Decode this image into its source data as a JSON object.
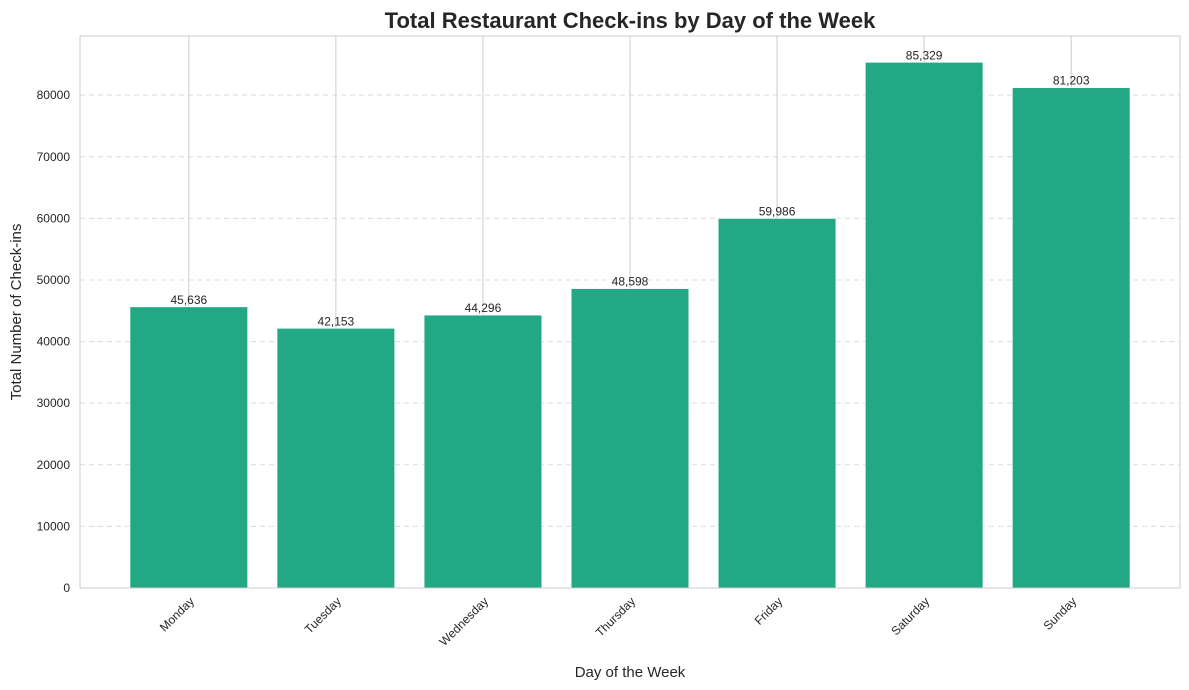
{
  "chart_data": {
    "type": "bar",
    "title": "Total Restaurant Check-ins by Day of the Week",
    "xlabel": "Day of the Week",
    "ylabel": "Total Number of Check-ins",
    "categories": [
      "Monday",
      "Tuesday",
      "Wednesday",
      "Thursday",
      "Friday",
      "Saturday",
      "Sunday"
    ],
    "values": [
      45636,
      42153,
      44296,
      48598,
      59986,
      85329,
      81203
    ],
    "data_labels": [
      "45,636",
      "42,153",
      "44,296",
      "48,598",
      "59,986",
      "85,329",
      "81,203"
    ],
    "yticks": [
      0,
      10000,
      20000,
      30000,
      40000,
      50000,
      60000,
      70000,
      80000
    ],
    "ylim": [
      0,
      89600
    ],
    "grid": true,
    "bar_color": "#22a884"
  }
}
